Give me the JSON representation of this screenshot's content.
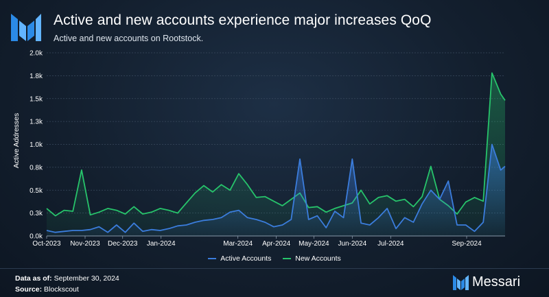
{
  "header": {
    "title": "Active and new accounts experience major increases QoQ",
    "subtitle": "Active and new accounts on Rootstock."
  },
  "footer": {
    "data_as_of_label": "Data as of:",
    "data_as_of_value": "September 30, 2024",
    "source_label": "Source:",
    "source_value": "Blockscout",
    "brand": "Messari"
  },
  "colors": {
    "active": "#3b7ddd",
    "new": "#27c46b",
    "grid": "#3a4a5e",
    "background": "#131f2e"
  },
  "icons": [
    "messari-logo-icon",
    "messari-brand-icon"
  ],
  "chart_data": {
    "type": "area",
    "title": "",
    "xlabel": "",
    "ylabel": "Active Addresses",
    "ylim": [
      0,
      2000
    ],
    "y_ticks": [
      0,
      250,
      500,
      750,
      1000,
      1250,
      1500,
      1750,
      2000
    ],
    "y_tick_labels": [
      "0.0k",
      "0.3k",
      "0.5k",
      "0.8k",
      "1.0k",
      "1.3k",
      "1.5k",
      "1.8k",
      "2.0k"
    ],
    "x_tick_labels": [
      "Oct-2023",
      "Nov-2023",
      "Dec-2023",
      "Jan-2024",
      "Mar-2024",
      "Apr-2024",
      "May-2024",
      "Jun-2024",
      "Jul-2024",
      "Sep-2024"
    ],
    "x_tick_weeks": [
      0,
      4.4,
      8.7,
      13.1,
      21.9,
      26.3,
      30.6,
      35.0,
      39.4,
      48.1
    ],
    "x_range_weeks": [
      0,
      52.5
    ],
    "grid": true,
    "legend_position": "bottom-center",
    "x_weeks": [
      0,
      1,
      2,
      3,
      4,
      5,
      6,
      7,
      8,
      9,
      10,
      11,
      12,
      13,
      14,
      15,
      16,
      17,
      18,
      19,
      20,
      21,
      22,
      23,
      24,
      25,
      26,
      27,
      28,
      29,
      30,
      31,
      32,
      33,
      34,
      35,
      36,
      37,
      38,
      39,
      40,
      41,
      42,
      43,
      44,
      45,
      46,
      47,
      48,
      49,
      50,
      51,
      52,
      52.5
    ],
    "series": [
      {
        "name": "Active Accounts",
        "values": [
          60,
          40,
          50,
          60,
          60,
          70,
          100,
          40,
          120,
          40,
          140,
          50,
          70,
          60,
          80,
          110,
          120,
          150,
          170,
          180,
          200,
          260,
          280,
          200,
          180,
          150,
          100,
          120,
          180,
          840,
          180,
          220,
          90,
          270,
          200,
          840,
          140,
          120,
          200,
          300,
          80,
          200,
          150,
          350,
          500,
          400,
          600,
          120,
          120,
          50,
          150,
          1000,
          720,
          760
        ]
      },
      {
        "name": "New Accounts",
        "values": [
          300,
          220,
          280,
          270,
          720,
          230,
          260,
          300,
          280,
          240,
          320,
          240,
          260,
          300,
          280,
          250,
          360,
          470,
          550,
          480,
          560,
          500,
          680,
          560,
          420,
          430,
          380,
          330,
          400,
          470,
          310,
          320,
          260,
          300,
          330,
          360,
          500,
          350,
          420,
          440,
          380,
          400,
          320,
          430,
          760,
          400,
          330,
          240,
          370,
          420,
          380,
          1780,
          1550,
          1480
        ]
      }
    ]
  }
}
